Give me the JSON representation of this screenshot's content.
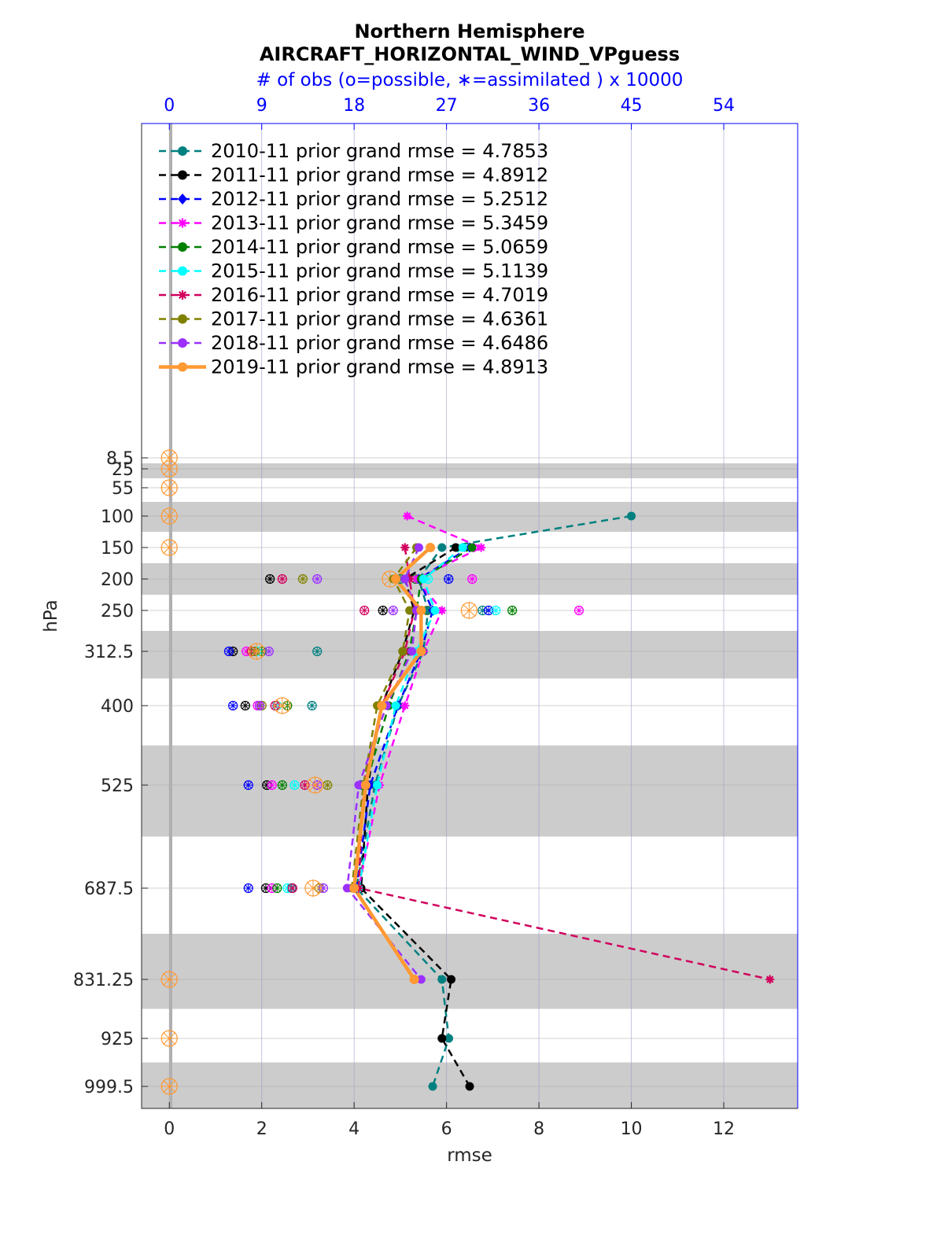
{
  "chart_data": {
    "type": "line",
    "title": "Northern Hemisphere",
    "subtitle": "AIRCRAFT_HORIZONTAL_WIND_VPguess",
    "top_axis_label": "# of obs (o=possible, ∗=assimilated ) x 10000",
    "xlabel": "rmse",
    "ylabel": "hPa",
    "xlim": [
      -0.6,
      13.6
    ],
    "x_ticks": [
      "0",
      "2",
      "4",
      "6",
      "8",
      "10",
      "12"
    ],
    "top_ticks": [
      "0",
      "9",
      "18",
      "27",
      "36",
      "45",
      "54"
    ],
    "levels": [
      8.5,
      25,
      55,
      100,
      150,
      200,
      250,
      312.5,
      400,
      525,
      687.5,
      831.25,
      925,
      999.5
    ],
    "level_labels": [
      "8.5",
      "25",
      "55",
      "100",
      "150",
      "200",
      "250",
      "312.5",
      "400",
      "525",
      "687.5",
      "831.25",
      "925",
      "999.5"
    ],
    "grid": true,
    "legend_position": "top-left",
    "series": [
      {
        "name": "2010-11 prior grand rmse = 4.7853",
        "color": "#008080",
        "marker": "circle",
        "dashed": true,
        "levels": [
          100,
          150,
          200,
          250,
          312.5,
          400,
          525,
          687.5,
          831.25,
          925,
          999.5
        ],
        "values": [
          10.0,
          5.9,
          5.4,
          5.6,
          5.5,
          4.95,
          4.45,
          4.05,
          5.9,
          6.05,
          5.7
        ]
      },
      {
        "name": "2011-11 prior grand rmse = 4.8912",
        "color": "#000000",
        "marker": "circle",
        "dashed": true,
        "levels": [
          150,
          200,
          250,
          312.5,
          400,
          525,
          687.5,
          831.25,
          925,
          999.5
        ],
        "values": [
          6.2,
          5.1,
          5.3,
          5.05,
          4.6,
          4.3,
          4.15,
          6.1,
          5.9,
          6.5
        ]
      },
      {
        "name": "2012-11 prior grand rmse = 5.2512",
        "color": "#0000ff",
        "marker": "diamond",
        "dashed": true,
        "levels": [
          150,
          200,
          250,
          312.5,
          400,
          525,
          687.5
        ],
        "values": [
          6.5,
          5.4,
          5.7,
          5.45,
          4.95,
          4.35,
          4.05
        ]
      },
      {
        "name": "2013-11 prior grand rmse = 5.3459",
        "color": "#ff00ff",
        "marker": "star",
        "dashed": true,
        "levels": [
          100,
          150,
          200,
          250,
          312.5,
          400,
          525,
          687.5
        ],
        "values": [
          5.15,
          6.75,
          5.35,
          5.9,
          5.5,
          5.1,
          4.55,
          4.1
        ]
      },
      {
        "name": "2014-11 prior grand rmse = 5.0659",
        "color": "#008000",
        "marker": "circle",
        "dashed": true,
        "levels": [
          150,
          200,
          250,
          312.5,
          400,
          525,
          687.5
        ],
        "values": [
          6.55,
          5.45,
          5.35,
          5.2,
          4.75,
          4.25,
          4.0
        ]
      },
      {
        "name": "2015-11 prior grand rmse = 5.1139",
        "color": "#00ffff",
        "marker": "circle",
        "dashed": true,
        "levels": [
          150,
          200,
          250,
          312.5,
          400,
          525,
          687.5
        ],
        "values": [
          6.35,
          5.5,
          5.75,
          5.35,
          4.9,
          4.5,
          4.1
        ]
      },
      {
        "name": "2016-11 prior grand rmse = 4.7019",
        "color": "#d1005c",
        "marker": "star",
        "dashed": true,
        "levels": [
          150,
          200,
          250,
          312.5,
          400,
          525,
          687.5,
          831.25
        ],
        "values": [
          5.1,
          5.2,
          5.3,
          5.1,
          4.6,
          4.2,
          4.1,
          13.0
        ]
      },
      {
        "name": "2017-11 prior grand rmse = 4.6361",
        "color": "#808000",
        "marker": "circle",
        "dashed": true,
        "levels": [
          150,
          200,
          250,
          312.5,
          400,
          525,
          687.5
        ],
        "values": [
          5.35,
          4.85,
          5.2,
          5.05,
          4.5,
          4.2,
          3.95
        ]
      },
      {
        "name": "2018-11 prior grand rmse = 4.6486",
        "color": "#9b30ff",
        "marker": "circle",
        "dashed": true,
        "levels": [
          150,
          200,
          250,
          312.5,
          400,
          525,
          687.5,
          831.25
        ],
        "values": [
          5.4,
          5.1,
          5.35,
          5.25,
          4.7,
          4.1,
          3.85,
          5.45
        ]
      },
      {
        "name": "2019-11 prior grand rmse = 4.8913",
        "color": "#ff9933",
        "marker": "circle",
        "dashed": false,
        "levels": [
          150,
          200,
          250,
          312.5,
          400,
          525,
          687.5,
          831.25
        ],
        "values": [
          5.65,
          4.9,
          5.45,
          5.45,
          4.6,
          4.25,
          4.0,
          5.3
        ]
      }
    ],
    "obs_counts": {
      "note": "x 10000 on top axis; o = possible, ∗ = assimilated",
      "series": [
        {
          "color": "#008080",
          "levels": [
            200,
            250,
            312.5,
            400,
            525,
            687.5
          ],
          "values": [
            22.5,
            30.5,
            14.4,
            13.9,
            18.8,
            11.9
          ]
        },
        {
          "color": "#000000",
          "levels": [
            200,
            250,
            312.5,
            400,
            525,
            687.5
          ],
          "values": [
            9.8,
            20.8,
            6.2,
            7.4,
            9.5,
            9.4
          ]
        },
        {
          "color": "#0000ff",
          "levels": [
            200,
            250,
            312.5,
            400,
            525,
            687.5
          ],
          "values": [
            27.2,
            31.1,
            5.8,
            6.2,
            7.7,
            7.7
          ]
        },
        {
          "color": "#ff00ff",
          "levels": [
            200,
            250,
            312.5,
            400,
            525,
            687.5
          ],
          "values": [
            29.5,
            39.9,
            7.5,
            8.6,
            10.0,
            10.0
          ]
        },
        {
          "color": "#008000",
          "levels": [
            200,
            250,
            312.5,
            400,
            525,
            687.5
          ],
          "values": [
            24.0,
            33.4,
            9.0,
            11.5,
            11.0,
            10.5
          ]
        },
        {
          "color": "#00ffff",
          "levels": [
            200,
            250,
            312.5,
            400,
            525,
            687.5
          ],
          "values": [
            25.2,
            31.8,
            8.5,
            10.5,
            12.2,
            11.5
          ]
        },
        {
          "color": "#d1005c",
          "levels": [
            200,
            250,
            312.5,
            400,
            525,
            687.5
          ],
          "values": [
            11.0,
            19.0,
            8.0,
            10.3,
            13.2,
            12.0
          ]
        },
        {
          "color": "#808000",
          "levels": [
            200,
            250,
            312.5,
            400,
            525,
            687.5
          ],
          "values": [
            13.0,
            25.1,
            8.3,
            9.0,
            15.4,
            14.6
          ]
        },
        {
          "color": "#9b30ff",
          "levels": [
            200,
            250,
            312.5,
            400,
            525,
            687.5
          ],
          "values": [
            14.4,
            21.8,
            9.7,
            8.8,
            14.4,
            15.0
          ]
        },
        {
          "color": "#ff9933",
          "levels": [
            8.5,
            25,
            55,
            100,
            150,
            200,
            250,
            312.5,
            400,
            525,
            687.5,
            831.25,
            925,
            999.5
          ],
          "values": [
            0,
            0,
            0,
            0,
            0,
            21.5,
            29.2,
            8.5,
            11.0,
            14.2,
            14.0,
            0,
            0,
            0
          ]
        }
      ]
    }
  }
}
